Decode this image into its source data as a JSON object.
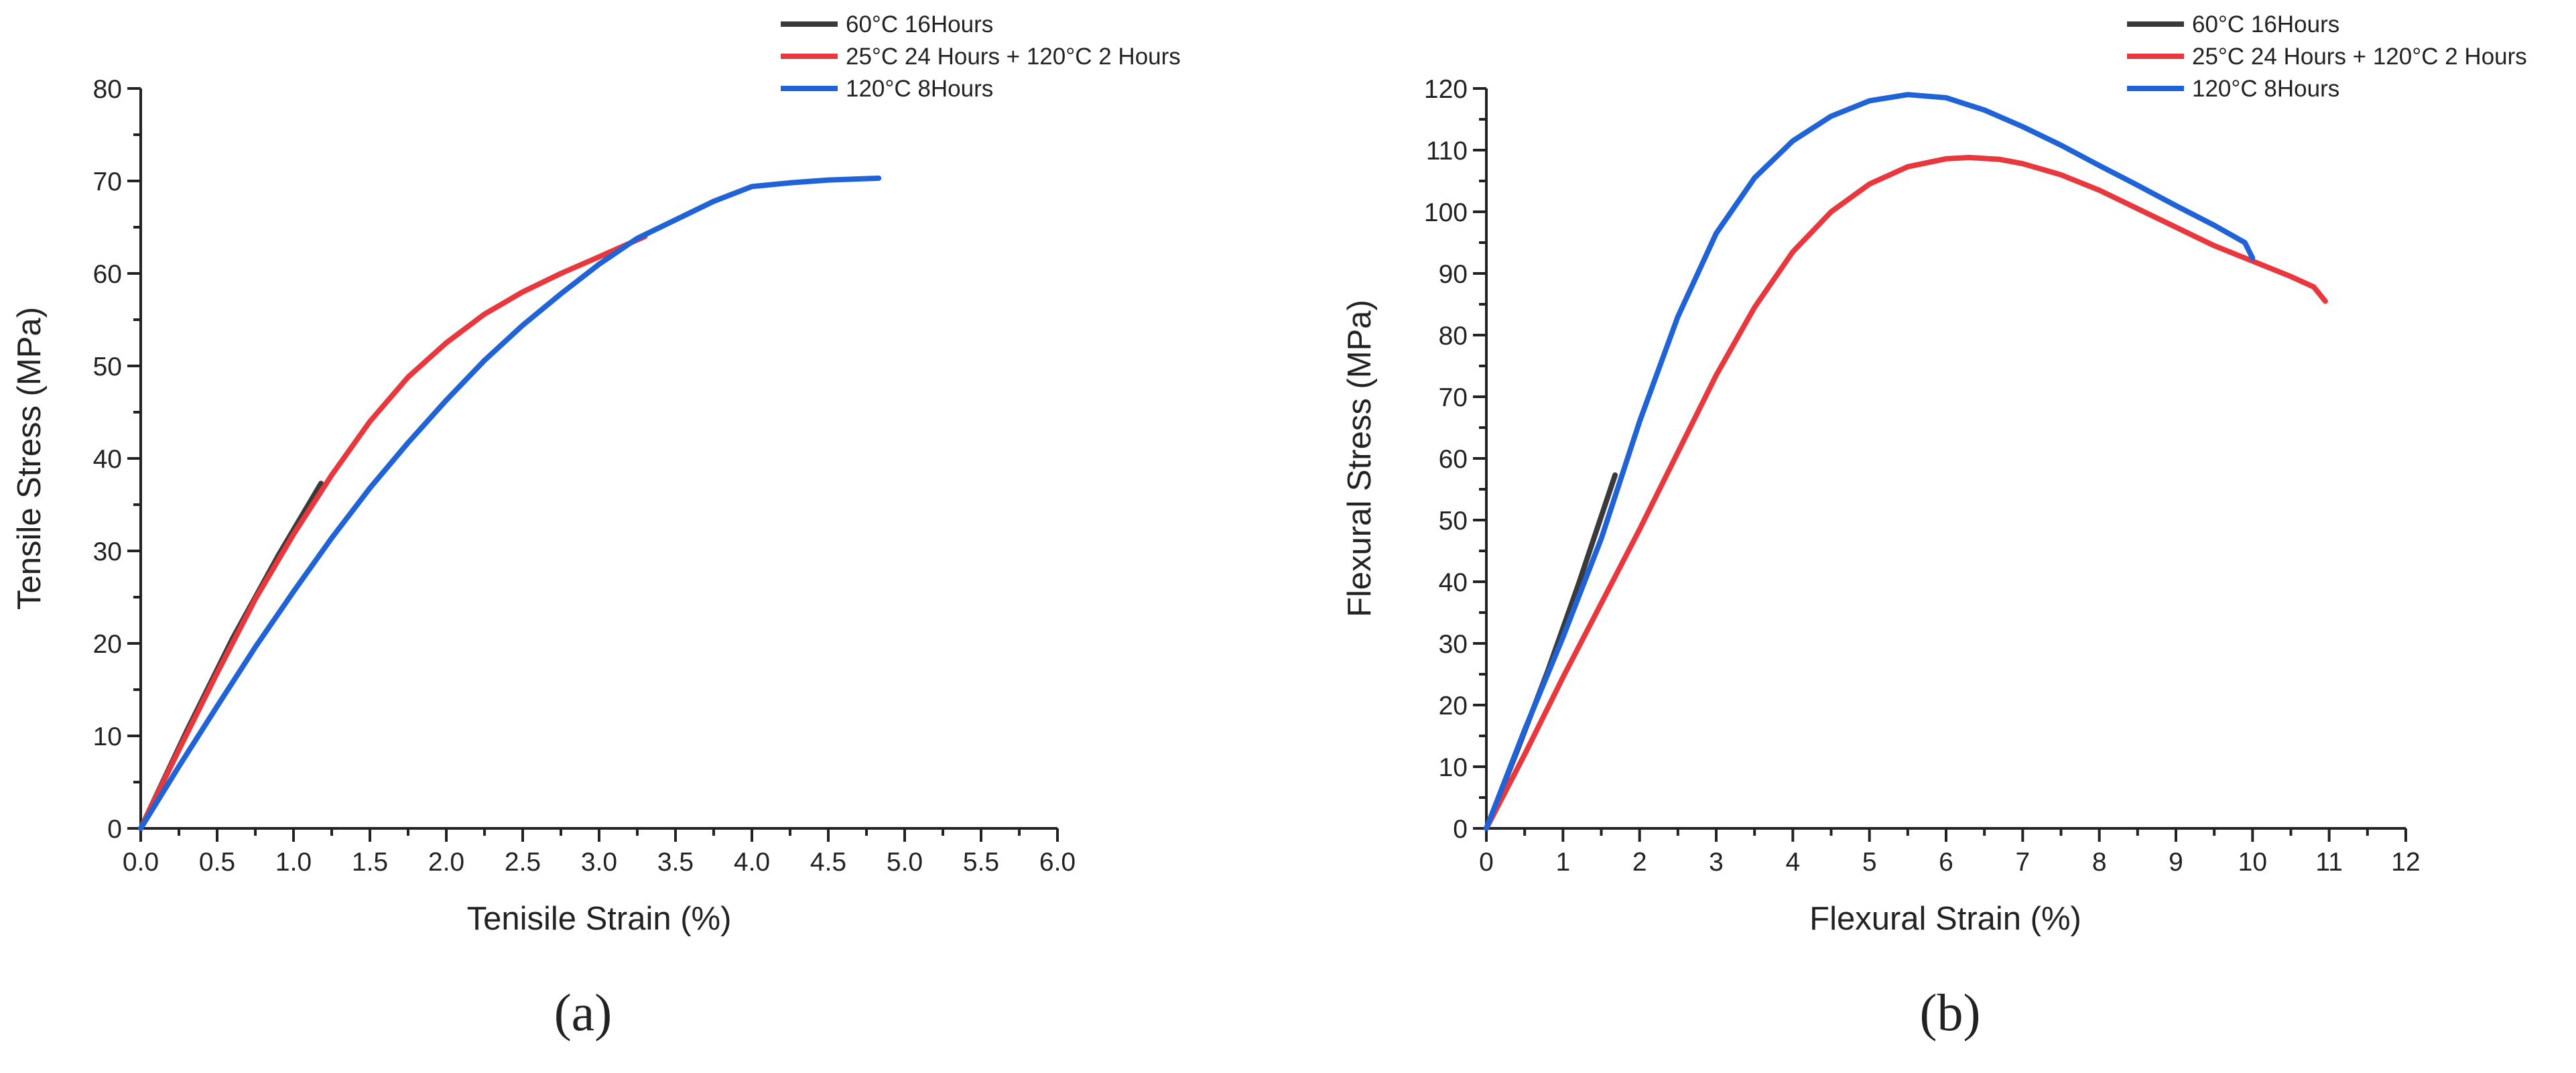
{
  "chart_data": [
    {
      "type": "line",
      "panel_label": "(a)",
      "xlabel": "Tenisile Strain (%)",
      "ylabel": "Tensile Stress (MPa)",
      "xlim": [
        0,
        6
      ],
      "ylim": [
        0,
        80
      ],
      "xticks": [
        "0.0",
        "0.5",
        "1.0",
        "1.5",
        "2.0",
        "2.5",
        "3.0",
        "3.5",
        "4.0",
        "4.5",
        "5.0",
        "5.5",
        "6.0"
      ],
      "yticks": [
        "0",
        "10",
        "20",
        "30",
        "40",
        "50",
        "60",
        "70",
        "80"
      ],
      "grid": false,
      "legend_position": "top-right",
      "series": [
        {
          "name": "60°C 16Hours",
          "color": "#3a3a3a",
          "points": [
            [
              0,
              0
            ],
            [
              0.3,
              10.5
            ],
            [
              0.6,
              20.5
            ],
            [
              0.9,
              29.5
            ],
            [
              1.18,
              37.3
            ]
          ]
        },
        {
          "name": "25°C 24 Hours + 120°C 2 Hours",
          "color": "#e8383d",
          "points": [
            [
              0,
              0
            ],
            [
              0.25,
              8.5
            ],
            [
              0.5,
              16.8
            ],
            [
              0.75,
              24.8
            ],
            [
              1.0,
              31.8
            ],
            [
              1.25,
              38.2
            ],
            [
              1.5,
              44
            ],
            [
              1.75,
              48.8
            ],
            [
              2.0,
              52.5
            ],
            [
              2.25,
              55.6
            ],
            [
              2.5,
              58
            ],
            [
              2.75,
              60
            ],
            [
              3.0,
              61.8
            ],
            [
              3.3,
              64
            ]
          ]
        },
        {
          "name": "120°C 8Hours",
          "color": "#1f63d6",
          "points": [
            [
              0,
              0
            ],
            [
              0.25,
              6.7
            ],
            [
              0.5,
              13.2
            ],
            [
              0.75,
              19.6
            ],
            [
              1.0,
              25.6
            ],
            [
              1.25,
              31.4
            ],
            [
              1.5,
              36.8
            ],
            [
              1.75,
              41.7
            ],
            [
              2.0,
              46.3
            ],
            [
              2.25,
              50.6
            ],
            [
              2.5,
              54.4
            ],
            [
              2.75,
              57.8
            ],
            [
              3.0,
              61
            ],
            [
              3.25,
              63.8
            ],
            [
              3.5,
              65.8
            ],
            [
              3.75,
              67.8
            ],
            [
              4.0,
              69.4
            ],
            [
              4.25,
              69.8
            ],
            [
              4.5,
              70.1
            ],
            [
              4.83,
              70.3
            ]
          ]
        }
      ]
    },
    {
      "type": "line",
      "panel_label": "(b)",
      "xlabel": "Flexural Strain (%)",
      "ylabel": "Flexural Stress (MPa)",
      "xlim": [
        0,
        12
      ],
      "ylim": [
        0,
        120
      ],
      "xticks": [
        "0",
        "1",
        "2",
        "3",
        "4",
        "5",
        "6",
        "7",
        "8",
        "9",
        "10",
        "11",
        "12"
      ],
      "yticks": [
        "0",
        "10",
        "20",
        "30",
        "40",
        "50",
        "60",
        "70",
        "80",
        "90",
        "100",
        "110",
        "120"
      ],
      "grid": false,
      "legend_position": "top-right",
      "series": [
        {
          "name": "60°C 16Hours",
          "color": "#3a3a3a",
          "points": [
            [
              0,
              0
            ],
            [
              0.4,
              12.5
            ],
            [
              0.8,
              25.5
            ],
            [
              1.2,
              39.5
            ],
            [
              1.68,
              57.3
            ]
          ]
        },
        {
          "name": "25°C 24 Hours + 120°C 2 Hours",
          "color": "#e8383d",
          "points": [
            [
              0,
              0
            ],
            [
              0.5,
              12
            ],
            [
              1.0,
              24.5
            ],
            [
              1.5,
              36.5
            ],
            [
              2.0,
              48.5
            ],
            [
              2.5,
              61
            ],
            [
              3.0,
              73.5
            ],
            [
              3.5,
              84.5
            ],
            [
              4.0,
              93.5
            ],
            [
              4.5,
              100
            ],
            [
              5.0,
              104.5
            ],
            [
              5.5,
              107.3
            ],
            [
              6.0,
              108.6
            ],
            [
              6.3,
              108.8
            ],
            [
              6.7,
              108.5
            ],
            [
              7.0,
              107.8
            ],
            [
              7.5,
              106
            ],
            [
              8.0,
              103.5
            ],
            [
              8.5,
              100.5
            ],
            [
              9.0,
              97.5
            ],
            [
              9.5,
              94.5
            ],
            [
              10.0,
              92
            ],
            [
              10.5,
              89.5
            ],
            [
              10.8,
              87.8
            ],
            [
              10.95,
              85.5
            ]
          ]
        },
        {
          "name": "120°C 8Hours",
          "color": "#1f63d6",
          "points": [
            [
              0,
              0
            ],
            [
              0.5,
              16
            ],
            [
              1.0,
              31
            ],
            [
              1.5,
              47
            ],
            [
              2.0,
              66
            ],
            [
              2.5,
              83
            ],
            [
              3.0,
              96.5
            ],
            [
              3.5,
              105.5
            ],
            [
              4.0,
              111.5
            ],
            [
              4.5,
              115.5
            ],
            [
              5.0,
              118
            ],
            [
              5.5,
              119
            ],
            [
              6.0,
              118.5
            ],
            [
              6.5,
              116.5
            ],
            [
              7.0,
              113.8
            ],
            [
              7.5,
              110.8
            ],
            [
              8.0,
              107.5
            ],
            [
              8.5,
              104.3
            ],
            [
              9.0,
              101
            ],
            [
              9.5,
              97.8
            ],
            [
              9.9,
              95
            ],
            [
              10.0,
              92.5
            ]
          ]
        }
      ]
    }
  ]
}
